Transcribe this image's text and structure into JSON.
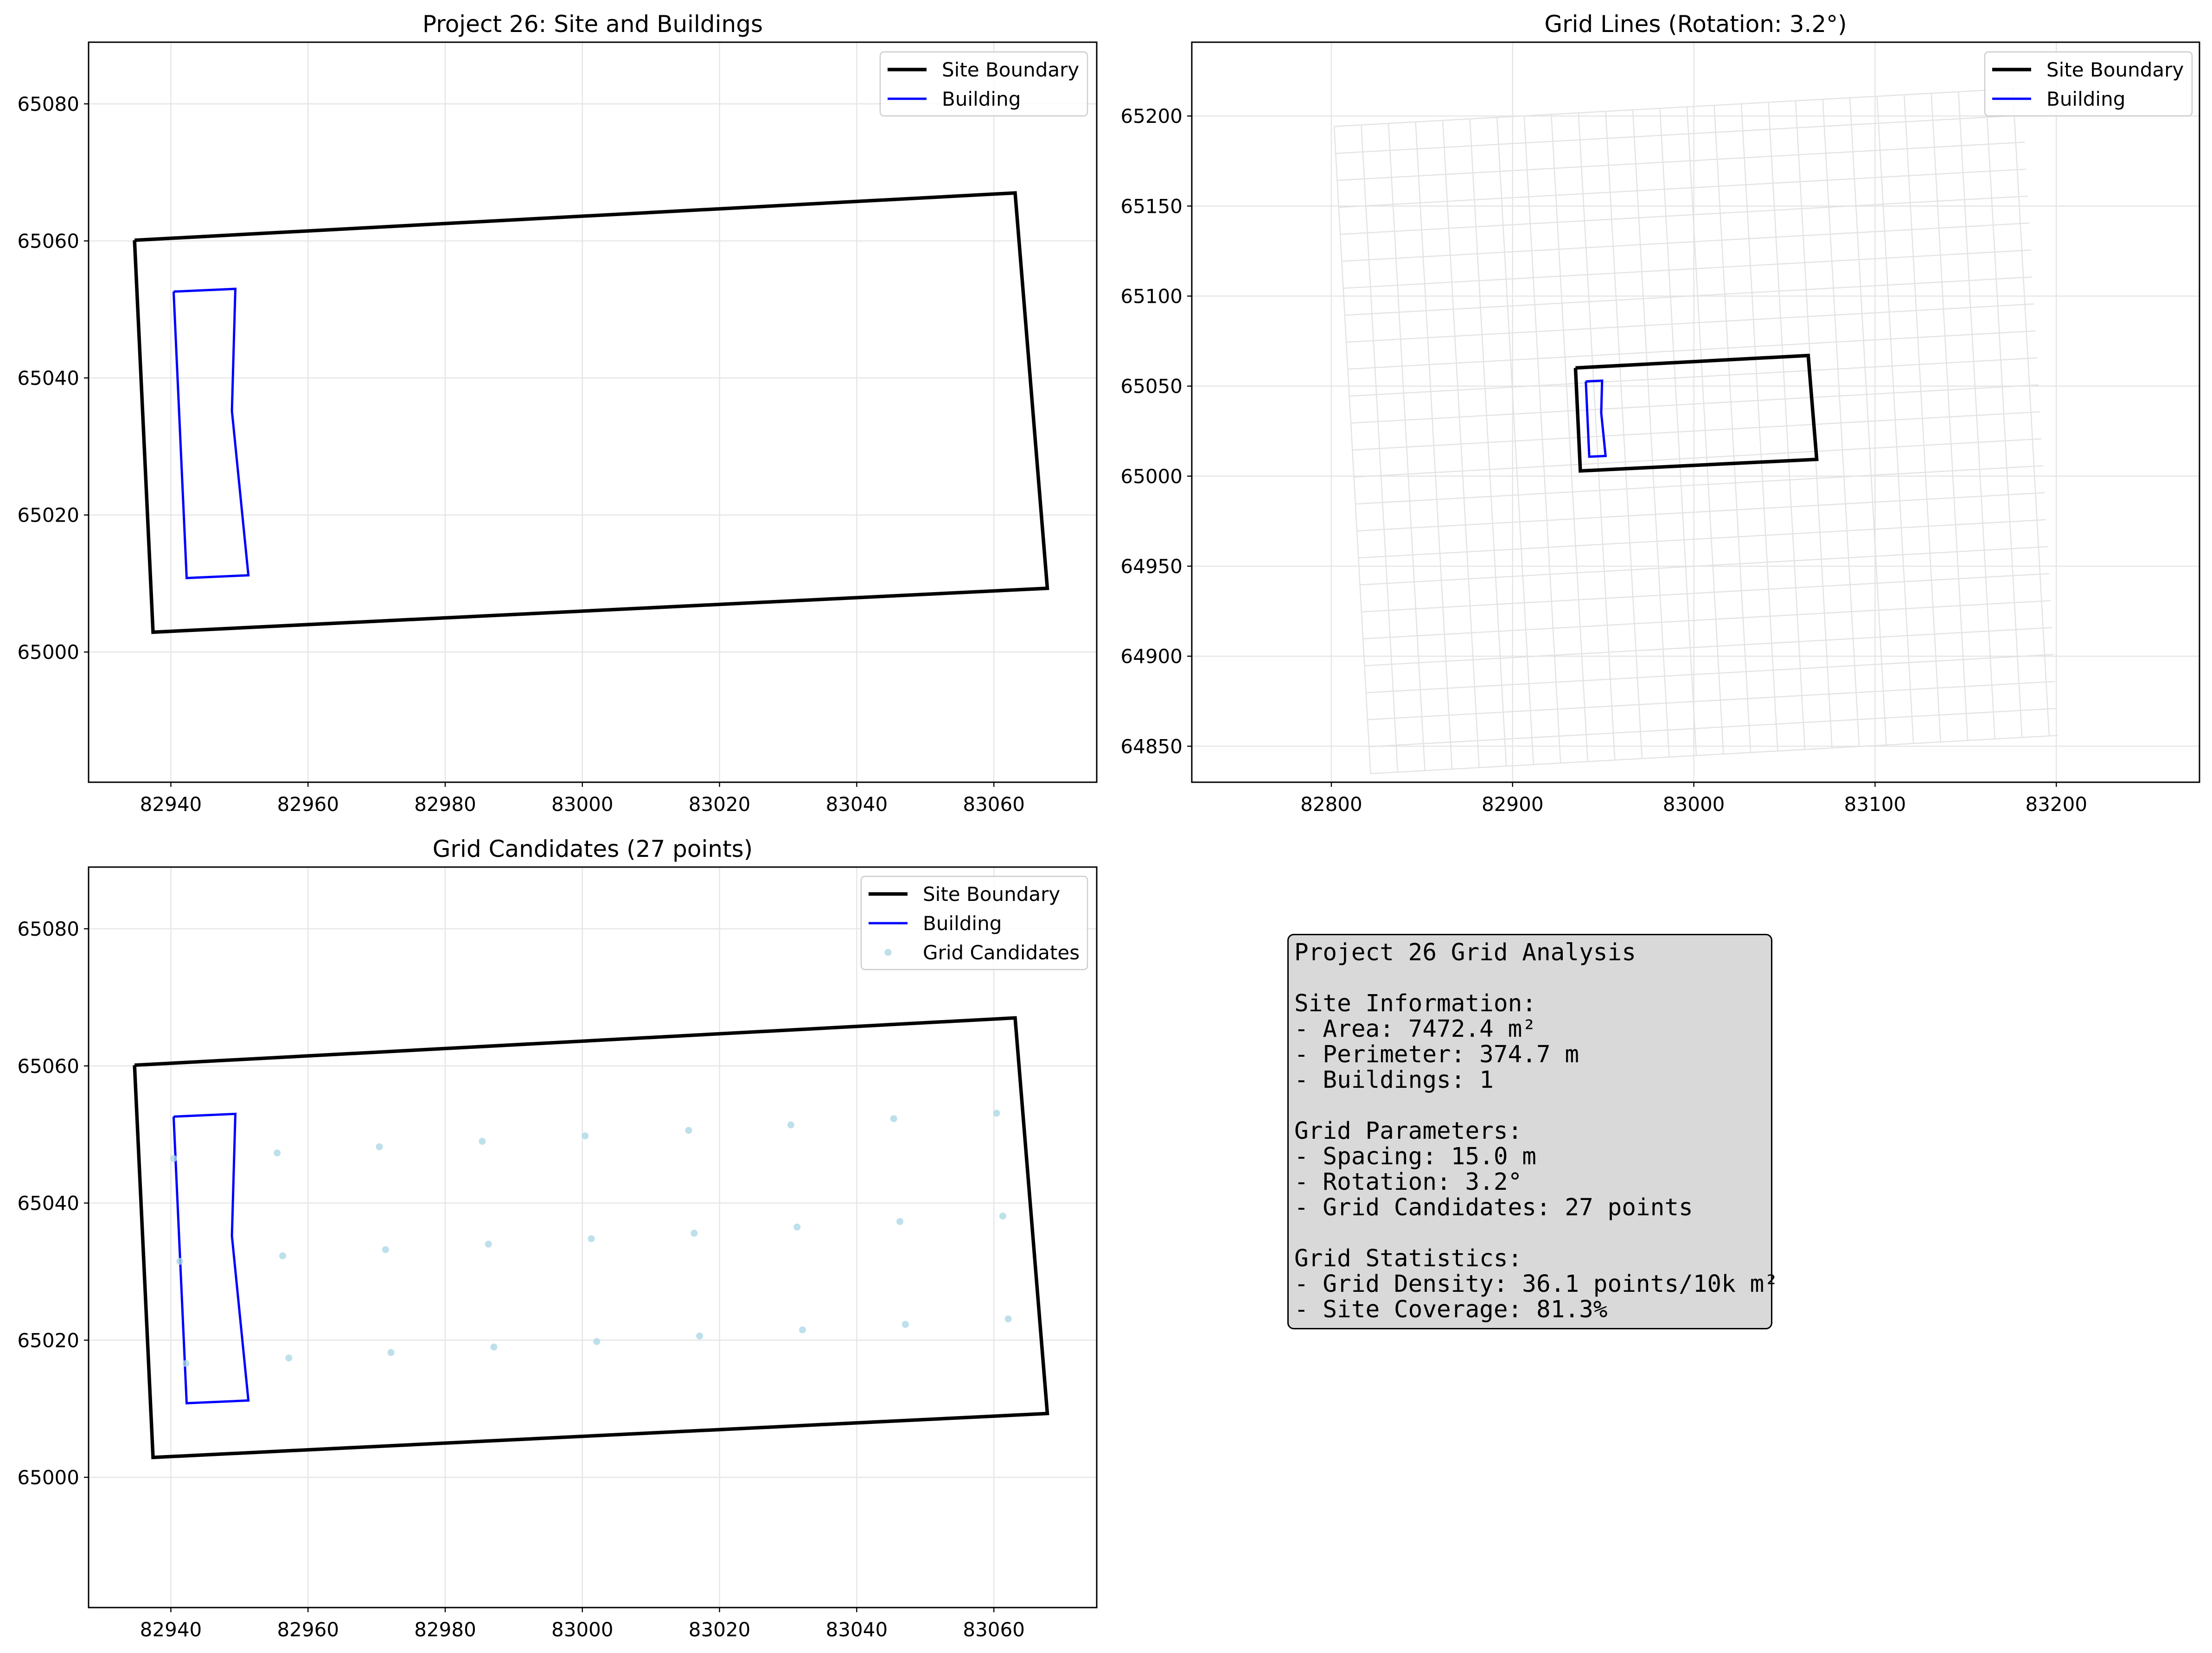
{
  "chart_data": [
    {
      "type": "line",
      "title": "Project 26: Site and Buildings",
      "xlim": [
        82928,
        83075
      ],
      "ylim": [
        64981,
        65089
      ],
      "xticks": [
        82940,
        82960,
        82980,
        83000,
        83020,
        83040,
        83060
      ],
      "yticks": [
        65000,
        65020,
        65040,
        65060,
        65080
      ],
      "grid": true,
      "legend": "top-right",
      "series": [
        {
          "name": "Site Boundary",
          "color": "#000000",
          "points": [
            [
              82934.7,
              65060.1
            ],
            [
              83063.1,
              65067.0
            ],
            [
              83067.8,
              65009.3
            ],
            [
              82937.4,
              65002.9
            ],
            [
              82934.7,
              65060.1
            ]
          ]
        },
        {
          "name": "Building",
          "color": "#0000ff",
          "points": [
            [
              82940.4,
              65052.6
            ],
            [
              82949.4,
              65053.0
            ],
            [
              82948.9,
              65035.2
            ],
            [
              82951.3,
              65011.2
            ],
            [
              82942.3,
              65010.8
            ],
            [
              82940.4,
              65052.6
            ]
          ]
        }
      ]
    },
    {
      "type": "line",
      "title": "Grid Lines (Rotation: 3.2°)",
      "xlim": [
        82723,
        83279
      ],
      "ylim": [
        64830,
        65241
      ],
      "xticks": [
        82800,
        82900,
        83000,
        83100,
        83200
      ],
      "yticks": [
        64850,
        64900,
        64950,
        65000,
        65050,
        65100,
        65150,
        65200
      ],
      "grid": true,
      "legend": "top-right",
      "grid_lines": {
        "spacing": 15,
        "rotation_deg": 3.2,
        "extent_x": [
          82811.3,
          83191.3
        ],
        "extent_y": [
          64845.1,
          65205.1
        ],
        "color": "#e3e3e3"
      },
      "series": [
        {
          "name": "Site Boundary",
          "color": "#000000",
          "points": [
            [
              82934.7,
              65060.1
            ],
            [
              83063.1,
              65067.0
            ],
            [
              83067.8,
              65009.3
            ],
            [
              82937.4,
              65002.9
            ],
            [
              82934.7,
              65060.1
            ]
          ]
        },
        {
          "name": "Building",
          "color": "#0000ff",
          "points": [
            [
              82940.4,
              65052.6
            ],
            [
              82949.4,
              65053.0
            ],
            [
              82948.9,
              65035.2
            ],
            [
              82951.3,
              65011.2
            ],
            [
              82942.3,
              65010.8
            ],
            [
              82940.4,
              65052.6
            ]
          ]
        }
      ]
    },
    {
      "type": "scatter",
      "title": "Grid Candidates (27 points)",
      "xlim": [
        82928,
        83075
      ],
      "ylim": [
        64981,
        65089
      ],
      "xticks": [
        82940,
        82960,
        82980,
        83000,
        83020,
        83040,
        83060
      ],
      "yticks": [
        65000,
        65020,
        65040,
        65060,
        65080
      ],
      "grid": true,
      "legend": "top-right",
      "series": [
        {
          "name": "Site Boundary",
          "color": "#000000",
          "points": [
            [
              82934.7,
              65060.1
            ],
            [
              83063.1,
              65067.0
            ],
            [
              83067.8,
              65009.3
            ],
            [
              82937.4,
              65002.9
            ],
            [
              82934.7,
              65060.1
            ]
          ]
        },
        {
          "name": "Building",
          "color": "#0000ff",
          "points": [
            [
              82940.4,
              65052.6
            ],
            [
              82949.4,
              65053.0
            ],
            [
              82948.9,
              65035.2
            ],
            [
              82951.3,
              65011.2
            ],
            [
              82942.3,
              65010.8
            ],
            [
              82940.4,
              65052.6
            ]
          ]
        },
        {
          "name": "Grid Candidates",
          "color": "#add8e6",
          "points": [
            [
              82940.4,
              65046.5
            ],
            [
              82955.5,
              65047.3
            ],
            [
              82970.4,
              65048.2
            ],
            [
              82985.4,
              65049.0
            ],
            [
              83000.4,
              65049.8
            ],
            [
              83015.5,
              65050.6
            ],
            [
              83030.4,
              65051.4
            ],
            [
              83045.4,
              65052.3
            ],
            [
              83060.4,
              65053.1
            ],
            [
              82941.3,
              65031.5
            ],
            [
              82956.3,
              65032.3
            ],
            [
              82971.3,
              65033.2
            ],
            [
              82986.3,
              65034.0
            ],
            [
              83001.3,
              65034.8
            ],
            [
              83016.3,
              65035.6
            ],
            [
              83031.3,
              65036.5
            ],
            [
              83046.3,
              65037.3
            ],
            [
              83061.3,
              65038.1
            ],
            [
              82942.2,
              65016.6
            ],
            [
              82957.2,
              65017.4
            ],
            [
              82972.1,
              65018.2
            ],
            [
              82987.1,
              65019.0
            ],
            [
              83002.1,
              65019.8
            ],
            [
              83017.1,
              65020.6
            ],
            [
              83032.1,
              65021.5
            ],
            [
              83047.1,
              65022.3
            ],
            [
              83062.1,
              65023.1
            ]
          ]
        }
      ]
    }
  ],
  "stats_panel": {
    "lines": [
      "Project 26 Grid Analysis",
      "",
      "Site Information:",
      "- Area: 7472.4 m²",
      "- Perimeter: 374.7 m",
      "- Buildings: 1",
      "",
      "Grid Parameters:",
      "- Spacing: 15.0 m",
      "- Rotation: 3.2°",
      "- Grid Candidates: 27 points",
      "",
      "Grid Statistics:",
      "- Grid Density: 36.1 points/10k m²",
      "- Site Coverage: 81.3%"
    ]
  }
}
